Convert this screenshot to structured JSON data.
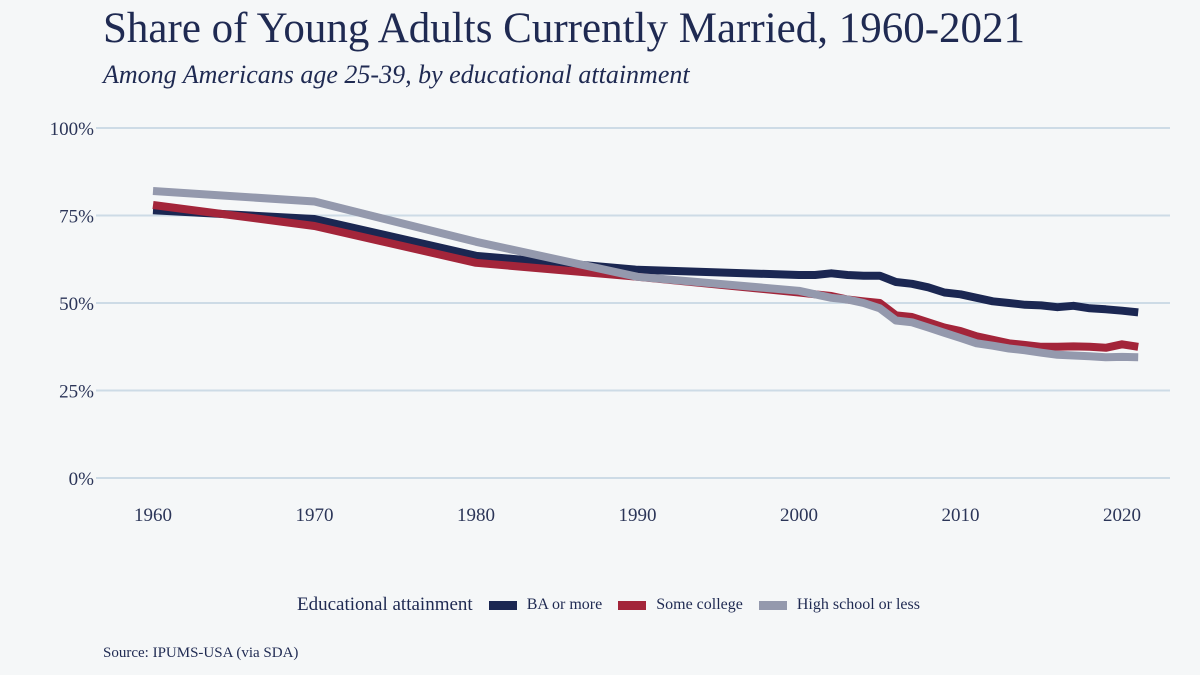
{
  "chart_data": {
    "type": "line",
    "title": "Share of Young Adults Currently Married, 1960-2021",
    "subtitle": "Among Americans age 25-39, by educational attainment",
    "source": "Source: IPUMS-USA (via SDA)",
    "xlabel": "",
    "ylabel": "",
    "xlim": [
      1960,
      2021
    ],
    "ylim": [
      0,
      100
    ],
    "x_ticks": [
      1960,
      1970,
      1980,
      1990,
      2000,
      2010,
      2020
    ],
    "y_ticks": [
      {
        "value": 0,
        "label": "0%"
      },
      {
        "value": 25,
        "label": "25%"
      },
      {
        "value": 50,
        "label": "50%"
      },
      {
        "value": 75,
        "label": "75%"
      },
      {
        "value": 100,
        "label": "100%"
      }
    ],
    "grid": "horizontal",
    "legend": {
      "title": "Educational attainment",
      "position": "bottom"
    },
    "series": [
      {
        "name": "BA or more",
        "color": "#1b2752",
        "points": [
          [
            1960,
            76.5
          ],
          [
            1970,
            74
          ],
          [
            1980,
            63.5
          ],
          [
            1990,
            59.5
          ],
          [
            2000,
            58
          ],
          [
            2001,
            58
          ],
          [
            2002,
            58.5
          ],
          [
            2003,
            58
          ],
          [
            2004,
            57.8
          ],
          [
            2005,
            57.8
          ],
          [
            2006,
            56
          ],
          [
            2007,
            55.5
          ],
          [
            2008,
            54.5
          ],
          [
            2009,
            53
          ],
          [
            2010,
            52.5
          ],
          [
            2011,
            51.5
          ],
          [
            2012,
            50.5
          ],
          [
            2013,
            50
          ],
          [
            2014,
            49.5
          ],
          [
            2015,
            49.3
          ],
          [
            2016,
            48.8
          ],
          [
            2017,
            49.2
          ],
          [
            2018,
            48.5
          ],
          [
            2019,
            48.2
          ],
          [
            2020,
            47.8
          ],
          [
            2021,
            47.3
          ]
        ]
      },
      {
        "name": "Some college",
        "color": "#a3253a",
        "points": [
          [
            1960,
            78
          ],
          [
            1970,
            72
          ],
          [
            1980,
            61.5
          ],
          [
            1990,
            57.5
          ],
          [
            2000,
            53
          ],
          [
            2001,
            52.5
          ],
          [
            2002,
            52
          ],
          [
            2003,
            51
          ],
          [
            2004,
            50.5
          ],
          [
            2005,
            50
          ],
          [
            2006,
            46.5
          ],
          [
            2007,
            46
          ],
          [
            2008,
            44.5
          ],
          [
            2009,
            43
          ],
          [
            2010,
            42
          ],
          [
            2011,
            40.5
          ],
          [
            2012,
            39.5
          ],
          [
            2013,
            38.5
          ],
          [
            2014,
            38
          ],
          [
            2015,
            37.5
          ],
          [
            2016,
            37.5
          ],
          [
            2017,
            37.6
          ],
          [
            2018,
            37.5
          ],
          [
            2019,
            37.2
          ],
          [
            2020,
            38.2
          ],
          [
            2021,
            37.5
          ]
        ]
      },
      {
        "name": "High school or less",
        "color": "#9499ad",
        "points": [
          [
            1960,
            82
          ],
          [
            1970,
            79
          ],
          [
            1980,
            67.5
          ],
          [
            1990,
            57.5
          ],
          [
            2000,
            53.5
          ],
          [
            2001,
            52.5
          ],
          [
            2002,
            51.5
          ],
          [
            2003,
            51
          ],
          [
            2004,
            50
          ],
          [
            2005,
            48.5
          ],
          [
            2006,
            45
          ],
          [
            2007,
            44.5
          ],
          [
            2008,
            43
          ],
          [
            2009,
            41.5
          ],
          [
            2010,
            40
          ],
          [
            2011,
            38.5
          ],
          [
            2012,
            37.8
          ],
          [
            2013,
            37
          ],
          [
            2014,
            36.5
          ],
          [
            2015,
            35.8
          ],
          [
            2016,
            35.2
          ],
          [
            2017,
            35
          ],
          [
            2018,
            34.8
          ],
          [
            2019,
            34.5
          ],
          [
            2020,
            34.6
          ],
          [
            2021,
            34.5
          ]
        ]
      }
    ]
  }
}
